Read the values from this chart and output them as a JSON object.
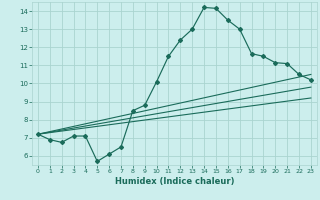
{
  "xlabel": "Humidex (Indice chaleur)",
  "bg_color": "#cceeed",
  "grid_color": "#aad4d0",
  "line_color": "#1a6b5a",
  "xlim": [
    -0.5,
    23.5
  ],
  "ylim": [
    5.5,
    14.5
  ],
  "xticks": [
    0,
    1,
    2,
    3,
    4,
    5,
    6,
    7,
    8,
    9,
    10,
    11,
    12,
    13,
    14,
    15,
    16,
    17,
    18,
    19,
    20,
    21,
    22,
    23
  ],
  "yticks": [
    6,
    7,
    8,
    9,
    10,
    11,
    12,
    13,
    14
  ],
  "main_x": [
    0,
    1,
    2,
    3,
    4,
    5,
    6,
    7,
    8,
    9,
    10,
    11,
    12,
    13,
    14,
    15,
    16,
    17,
    18,
    19,
    20,
    21,
    22,
    23
  ],
  "main_y": [
    7.2,
    6.9,
    6.75,
    7.1,
    7.1,
    5.7,
    6.1,
    6.5,
    8.5,
    8.8,
    10.1,
    11.5,
    12.4,
    13.0,
    14.2,
    14.15,
    13.5,
    13.0,
    11.65,
    11.5,
    11.15,
    11.1,
    10.5,
    10.2
  ],
  "line1_x": [
    0,
    23
  ],
  "line1_y": [
    7.2,
    10.5
  ],
  "line2_x": [
    0,
    23
  ],
  "line2_y": [
    7.2,
    9.8
  ],
  "line3_x": [
    0,
    23
  ],
  "line3_y": [
    7.2,
    9.2
  ]
}
